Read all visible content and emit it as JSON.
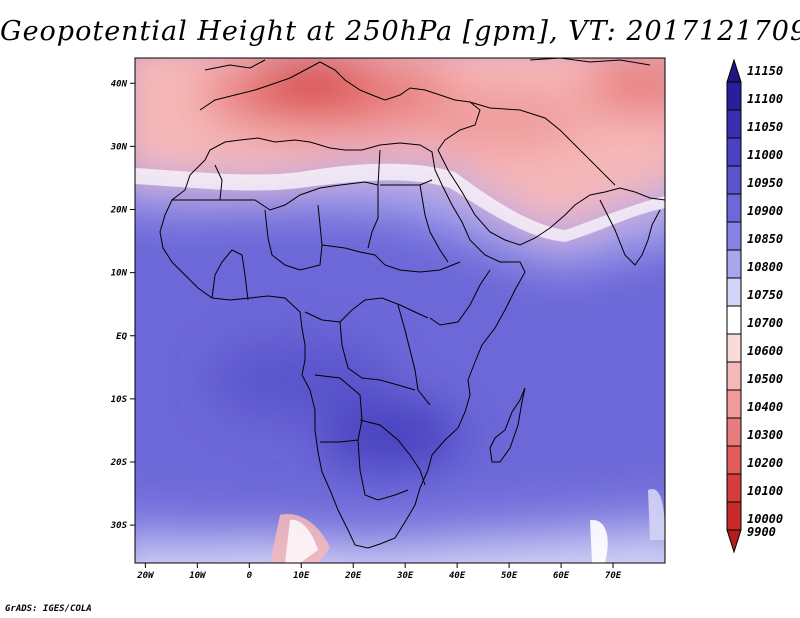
{
  "title": "Geopotential Height at 250hPa [gpm], VT: 2017121709",
  "credit": "GrADS: IGES/COLA",
  "axes": {
    "lon_ticks": [
      {
        "value": -20,
        "label": "20W"
      },
      {
        "value": -10,
        "label": "10W"
      },
      {
        "value": 0,
        "label": "0"
      },
      {
        "value": 10,
        "label": "10E"
      },
      {
        "value": 20,
        "label": "20E"
      },
      {
        "value": 30,
        "label": "30E"
      },
      {
        "value": 40,
        "label": "40E"
      },
      {
        "value": 50,
        "label": "50E"
      },
      {
        "value": 60,
        "label": "60E"
      },
      {
        "value": 70,
        "label": "70E"
      }
    ],
    "lat_ticks": [
      {
        "value": 40,
        "label": "40N"
      },
      {
        "value": 30,
        "label": "30N"
      },
      {
        "value": 20,
        "label": "20N"
      },
      {
        "value": 10,
        "label": "10N"
      },
      {
        "value": 0,
        "label": "EQ"
      },
      {
        "value": -10,
        "label": "10S"
      },
      {
        "value": -20,
        "label": "20S"
      },
      {
        "value": -30,
        "label": "30S"
      }
    ]
  },
  "legend": {
    "top_label": "11150",
    "bottom_label": "9900",
    "levels": [
      {
        "label": "11100",
        "color": "#2a1e9c"
      },
      {
        "label": "11050",
        "color": "#3a2fb0"
      },
      {
        "label": "11000",
        "color": "#4a42c0"
      },
      {
        "label": "10950",
        "color": "#5a55cc"
      },
      {
        "label": "10900",
        "color": "#6c68d8"
      },
      {
        "label": "10850",
        "color": "#8683e2"
      },
      {
        "label": "10800",
        "color": "#a8a6ec"
      },
      {
        "label": "10750",
        "color": "#d4d4f6"
      },
      {
        "label": "10700",
        "color": "#ffffff"
      },
      {
        "label": "10600",
        "color": "#fbdada"
      },
      {
        "label": "10500",
        "color": "#f6b8b8"
      },
      {
        "label": "10400",
        "color": "#f09a9a"
      },
      {
        "label": "10300",
        "color": "#e87b7b"
      },
      {
        "label": "10200",
        "color": "#e05c5c"
      },
      {
        "label": "10100",
        "color": "#d63c3c"
      },
      {
        "label": "10000",
        "color": "#c82a2a"
      }
    ],
    "top_color": "#211680",
    "bottom_color": "#b51d1d"
  },
  "map_extent": {
    "lon": [
      -22,
      80
    ],
    "lat": [
      -36,
      44
    ]
  }
}
